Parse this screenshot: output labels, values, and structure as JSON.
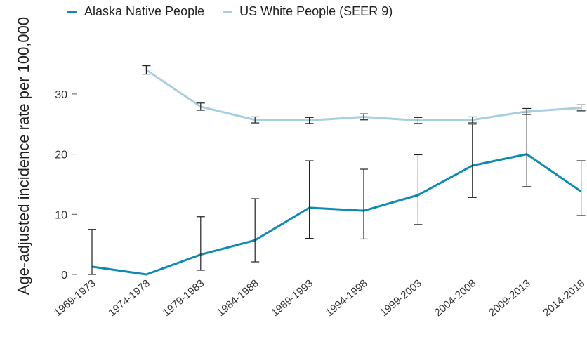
{
  "chart_data": {
    "type": "line",
    "categories": [
      "1969-1973",
      "1974-1978",
      "1979-1983",
      "1984-1988",
      "1989-1993",
      "1994-1998",
      "1999-2003",
      "2004-2008",
      "2009-2013",
      "2014-2018"
    ],
    "series": [
      {
        "name": "Alaska Native People",
        "color": "#0e8bb5",
        "values": [
          1.3,
          0.0,
          3.3,
          5.7,
          11.1,
          10.6,
          13.2,
          18.1,
          20.0,
          13.8
        ],
        "lower": [
          0.0,
          null,
          0.7,
          2.1,
          6.0,
          5.9,
          8.3,
          12.8,
          14.6,
          9.8
        ],
        "upper": [
          7.5,
          null,
          9.6,
          12.6,
          18.9,
          17.5,
          19.9,
          25.0,
          27.0,
          18.9
        ]
      },
      {
        "name": "US White People (SEER 9)",
        "color": "#a8cfe0",
        "values": [
          null,
          34.0,
          27.9,
          25.7,
          25.6,
          26.2,
          25.6,
          25.7,
          27.1,
          27.7
        ],
        "lower": [
          null,
          33.3,
          27.3,
          25.2,
          25.1,
          25.7,
          25.1,
          25.2,
          26.6,
          27.2
        ],
        "upper": [
          null,
          34.7,
          28.5,
          26.2,
          26.1,
          26.7,
          26.1,
          26.2,
          27.6,
          28.2
        ]
      }
    ],
    "ylabel": "Age-adjusted incidence rate per 100,000",
    "yticks": [
      0,
      10,
      20,
      30
    ],
    "ylim": [
      0,
      37
    ],
    "grid": false,
    "legend": "top-left"
  }
}
